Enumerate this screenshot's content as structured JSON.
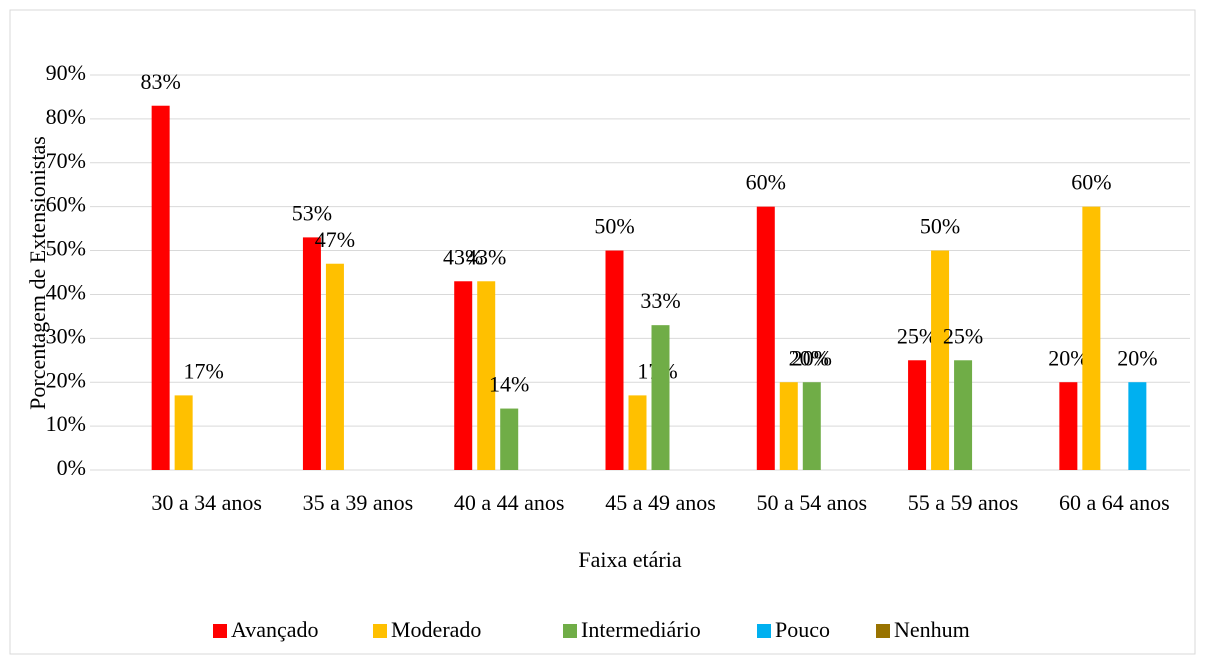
{
  "chart_data": {
    "type": "bar",
    "x_label": "Faixa etária",
    "y_label": "Porcentagem de Extensionistas",
    "categories": [
      "30 a 34 anos",
      "35 a 39 anos",
      "40 a 44 anos",
      "45 a 49 anos",
      "50 a 54 anos",
      "55 a 59 anos",
      "60 a 64 anos"
    ],
    "series": [
      {
        "name": "Avançado",
        "color": "#ff0000",
        "values": [
          83,
          53,
          43,
          50,
          60,
          25,
          20
        ],
        "value_labels": [
          "83%",
          "53%",
          "43%",
          "50%",
          "60%",
          "25%",
          "20%"
        ]
      },
      {
        "name": "Moderado",
        "color": "#ffc000",
        "values": [
          17,
          47,
          43,
          17,
          20,
          50,
          60
        ],
        "value_labels": [
          "17%",
          "47%",
          "43%",
          "17%",
          "20%",
          "50%",
          "60%"
        ]
      },
      {
        "name": "Intermediário",
        "color": "#70ad47",
        "values": [
          null,
          null,
          14,
          33,
          20,
          25,
          null
        ],
        "value_labels": [
          null,
          null,
          "14%",
          "33%",
          "20%",
          "25%",
          null
        ]
      },
      {
        "name": "Pouco",
        "color": "#00b0f0",
        "values": [
          null,
          null,
          null,
          null,
          null,
          null,
          20
        ],
        "value_labels": [
          null,
          null,
          null,
          null,
          null,
          null,
          "20%"
        ]
      },
      {
        "name": "Nenhum",
        "color": "#997300",
        "values": [
          null,
          null,
          null,
          null,
          null,
          null,
          null
        ],
        "value_labels": [
          null,
          null,
          null,
          null,
          null,
          null,
          null
        ]
      }
    ],
    "ylim": [
      0,
      90
    ],
    "yticks": [
      {
        "value": 0,
        "label": "0%"
      },
      {
        "value": 10,
        "label": "10%"
      },
      {
        "value": 20,
        "label": "20%"
      },
      {
        "value": 30,
        "label": "30%"
      },
      {
        "value": 40,
        "label": "40%"
      },
      {
        "value": 50,
        "label": "50%"
      },
      {
        "value": 60,
        "label": "60%"
      },
      {
        "value": 70,
        "label": "70%"
      },
      {
        "value": 80,
        "label": "80%"
      },
      {
        "value": 90,
        "label": "90%"
      }
    ],
    "grid": true,
    "legend": "bottom"
  }
}
